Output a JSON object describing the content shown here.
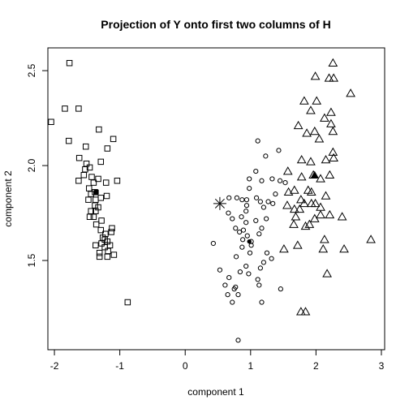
{
  "chart_data": {
    "type": "scatter",
    "title": "Projection of Y onto first two columns of H",
    "xlabel": "component 1",
    "ylabel": "component 2",
    "xlim": [
      -2.1,
      3.05
    ],
    "ylim": [
      1.03,
      2.62
    ],
    "grid": false,
    "legend": "none",
    "xticks": [
      {
        "value": -2,
        "label": "-2"
      },
      {
        "value": -1,
        "label": "-1"
      },
      {
        "value": 0,
        "label": "0"
      },
      {
        "value": 1,
        "label": "1"
      },
      {
        "value": 2,
        "label": "2"
      },
      {
        "value": 3,
        "label": "3"
      }
    ],
    "yticks": [
      {
        "value": 1.5,
        "label": "1.5"
      },
      {
        "value": 2.0,
        "label": "2.0"
      },
      {
        "value": 2.5,
        "label": "2.5"
      }
    ],
    "series": [
      {
        "marker": "square",
        "points": [
          [
            -1.77,
            2.54
          ],
          [
            -1.84,
            2.3
          ],
          [
            -1.63,
            2.3
          ],
          [
            -2.05,
            2.23
          ],
          [
            -1.78,
            2.13
          ],
          [
            -1.32,
            2.19
          ],
          [
            -1.1,
            2.14
          ],
          [
            -1.19,
            2.09
          ],
          [
            -1.52,
            2.1
          ],
          [
            -1.62,
            2.04
          ],
          [
            -1.51,
            2.01
          ],
          [
            -1.46,
            1.99
          ],
          [
            -1.29,
            2.02
          ],
          [
            -1.53,
            1.98
          ],
          [
            -1.55,
            1.95
          ],
          [
            -1.43,
            1.94
          ],
          [
            -1.4,
            1.91
          ],
          [
            -1.33,
            1.93
          ],
          [
            -1.04,
            1.92
          ],
          [
            -1.21,
            1.91
          ],
          [
            -1.63,
            1.92
          ],
          [
            -1.47,
            1.88
          ],
          [
            -1.44,
            1.85
          ],
          [
            -1.48,
            1.82
          ],
          [
            -1.37,
            1.82
          ],
          [
            -1.29,
            1.83
          ],
          [
            -1.2,
            1.84
          ],
          [
            -1.38,
            1.79
          ],
          [
            -1.33,
            1.78
          ],
          [
            -1.44,
            1.76
          ],
          [
            -1.37,
            1.76
          ],
          [
            -1.46,
            1.73
          ],
          [
            -1.4,
            1.73
          ],
          [
            -1.28,
            1.71
          ],
          [
            -1.36,
            1.69
          ],
          [
            -1.29,
            1.66
          ],
          [
            -1.12,
            1.67
          ],
          [
            -1.13,
            1.65
          ],
          [
            -1.22,
            1.64
          ],
          [
            -1.26,
            1.62
          ],
          [
            -1.19,
            1.6
          ],
          [
            -1.37,
            1.58
          ],
          [
            -1.28,
            1.59
          ],
          [
            -1.23,
            1.57
          ],
          [
            -1.18,
            1.55
          ],
          [
            -1.31,
            1.54
          ],
          [
            -1.09,
            1.53
          ],
          [
            -1.31,
            1.52
          ],
          [
            -1.19,
            1.52
          ],
          [
            -1.15,
            1.58
          ],
          [
            -1.23,
            1.61
          ],
          [
            -1.38,
            1.86
          ],
          [
            -0.88,
            1.28
          ]
        ]
      },
      {
        "marker": "circle",
        "points": [
          [
            1.11,
            2.13
          ],
          [
            1.23,
            2.05
          ],
          [
            1.43,
            2.08
          ],
          [
            1.08,
            1.97
          ],
          [
            0.98,
            1.93
          ],
          [
            1.17,
            1.92
          ],
          [
            0.98,
            1.88
          ],
          [
            1.33,
            1.93
          ],
          [
            1.45,
            1.92
          ],
          [
            1.53,
            1.91
          ],
          [
            1.38,
            1.85
          ],
          [
            0.94,
            1.82
          ],
          [
            1.09,
            1.83
          ],
          [
            0.79,
            1.83
          ],
          [
            0.87,
            1.82
          ],
          [
            0.67,
            1.83
          ],
          [
            0.94,
            1.79
          ],
          [
            1.15,
            1.81
          ],
          [
            1.27,
            1.81
          ],
          [
            1.34,
            1.8
          ],
          [
            1.2,
            1.78
          ],
          [
            0.93,
            1.76
          ],
          [
            0.66,
            1.75
          ],
          [
            0.72,
            1.72
          ],
          [
            0.86,
            1.73
          ],
          [
            0.93,
            1.7
          ],
          [
            1.08,
            1.71
          ],
          [
            1.24,
            1.72
          ],
          [
            0.77,
            1.67
          ],
          [
            0.89,
            1.66
          ],
          [
            1.17,
            1.67
          ],
          [
            0.83,
            1.65
          ],
          [
            1.13,
            1.64
          ],
          [
            0.95,
            1.63
          ],
          [
            0.88,
            1.61
          ],
          [
            1.01,
            1.58
          ],
          [
            0.87,
            1.57
          ],
          [
            0.99,
            1.54
          ],
          [
            1.25,
            1.54
          ],
          [
            0.78,
            1.52
          ],
          [
            1.32,
            1.51
          ],
          [
            1.2,
            1.49
          ],
          [
            0.93,
            1.47
          ],
          [
            1.15,
            1.46
          ],
          [
            0.53,
            1.45
          ],
          [
            0.84,
            1.44
          ],
          [
            0.97,
            1.43
          ],
          [
            0.67,
            1.41
          ],
          [
            1.11,
            1.4
          ],
          [
            0.61,
            1.37
          ],
          [
            0.77,
            1.36
          ],
          [
            0.65,
            1.32
          ],
          [
            0.75,
            1.35
          ],
          [
            1.13,
            1.37
          ],
          [
            1.46,
            1.35
          ],
          [
            0.81,
            1.32
          ],
          [
            0.72,
            1.28
          ],
          [
            1.17,
            1.28
          ],
          [
            0.43,
            1.59
          ],
          [
            0.81,
            1.08
          ],
          [
            1.01,
            1.6
          ]
        ]
      },
      {
        "marker": "triangle",
        "points": [
          [
            2.26,
            2.54
          ],
          [
            1.99,
            2.47
          ],
          [
            2.2,
            2.46
          ],
          [
            2.27,
            2.46
          ],
          [
            2.53,
            2.38
          ],
          [
            1.82,
            2.34
          ],
          [
            2.01,
            2.34
          ],
          [
            1.92,
            2.29
          ],
          [
            2.23,
            2.28
          ],
          [
            2.13,
            2.25
          ],
          [
            2.23,
            2.22
          ],
          [
            1.73,
            2.21
          ],
          [
            1.98,
            2.18
          ],
          [
            2.26,
            2.18
          ],
          [
            1.86,
            2.17
          ],
          [
            2.05,
            2.14
          ],
          [
            2.26,
            2.07
          ],
          [
            1.78,
            2.03
          ],
          [
            1.92,
            2.02
          ],
          [
            2.27,
            2.04
          ],
          [
            2.15,
            2.03
          ],
          [
            1.57,
            1.97
          ],
          [
            1.78,
            1.94
          ],
          [
            1.96,
            1.95
          ],
          [
            2.21,
            1.95
          ],
          [
            2.07,
            1.93
          ],
          [
            1.67,
            1.87
          ],
          [
            1.88,
            1.87
          ],
          [
            1.58,
            1.86
          ],
          [
            2.15,
            1.84
          ],
          [
            1.77,
            1.82
          ],
          [
            1.93,
            1.8
          ],
          [
            1.99,
            1.8
          ],
          [
            1.82,
            1.8
          ],
          [
            1.56,
            1.79
          ],
          [
            2.07,
            1.78
          ],
          [
            1.67,
            1.77
          ],
          [
            1.75,
            1.77
          ],
          [
            1.69,
            1.73
          ],
          [
            1.98,
            1.72
          ],
          [
            2.07,
            1.74
          ],
          [
            2.21,
            1.74
          ],
          [
            1.66,
            1.69
          ],
          [
            1.9,
            1.69
          ],
          [
            1.84,
            1.68
          ],
          [
            2.4,
            1.73
          ],
          [
            2.13,
            1.61
          ],
          [
            2.84,
            1.61
          ],
          [
            1.72,
            1.58
          ],
          [
            1.51,
            1.56
          ],
          [
            2.11,
            1.56
          ],
          [
            2.43,
            1.56
          ],
          [
            2.17,
            1.43
          ],
          [
            1.77,
            1.23
          ],
          [
            1.84,
            1.23
          ],
          [
            1.93,
            1.86
          ]
        ]
      }
    ],
    "centroids": [
      {
        "marker": "square",
        "x": -1.36,
        "y": 1.86
      },
      {
        "marker": "circle",
        "x": 0.98,
        "y": 1.6
      },
      {
        "marker": "triangle",
        "x": 1.98,
        "y": 1.95
      }
    ],
    "star": {
      "x": 0.53,
      "y": 1.8
    }
  }
}
